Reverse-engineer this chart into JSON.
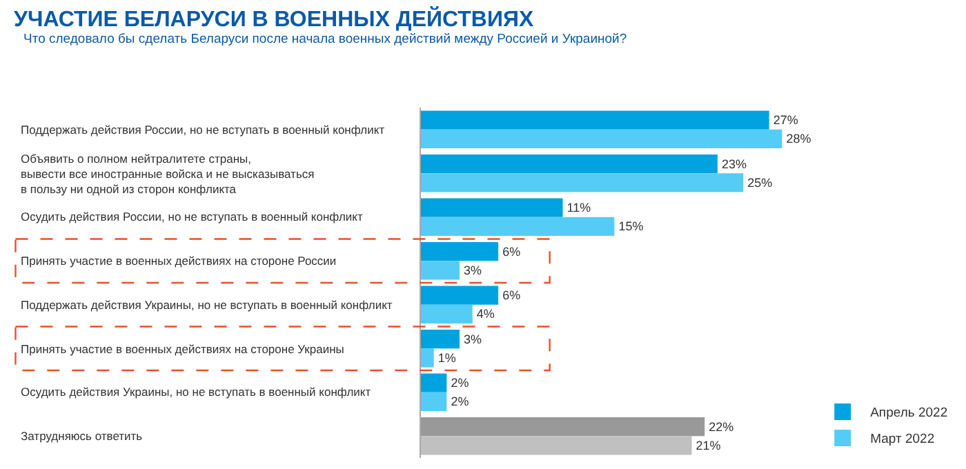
{
  "chart_data": {
    "type": "bar",
    "orientation": "horizontal",
    "title": "УЧАСТИЕ БЕЛАРУСИ В ВОЕННЫХ ДЕЙСТВИЯХ",
    "subtitle": "Что следовало бы сделать Беларуси после начала военных действий между Россией и Украиной?",
    "categories": [
      "Поддержать действия России, но не вступать в военный конфликт",
      "Объявить о полном нейтралитете страны,\nвывести все иностранные войска и не высказываться\nв пользу ни одной из сторон конфликта",
      "Осудить действия России, но не вступать в военный конфликт",
      "Принять участие в военных действиях на стороне России",
      "Поддержать действия Украины, но не вступать в военный конфликт",
      "Принять участие в военных действиях на стороне Украины",
      "Осудить действия Украины, но не вступать в военный конфликт",
      "Затрудняюсь ответить"
    ],
    "series": [
      {
        "name": "Апрель 2022",
        "color": "#00a3e0",
        "colors": [
          "#00a3e0",
          "#00a3e0",
          "#00a3e0",
          "#00a3e0",
          "#00a3e0",
          "#00a3e0",
          "#00a3e0",
          "#999999"
        ],
        "values": [
          27,
          23,
          11,
          6,
          6,
          3,
          2,
          22
        ],
        "value_labels": [
          "27%",
          "23%",
          "11%",
          "6%",
          "6%",
          "3%",
          "2%",
          "22%"
        ]
      },
      {
        "name": "Март 2022",
        "color": "#55ccf5",
        "colors": [
          "#55ccf5",
          "#55ccf5",
          "#55ccf5",
          "#55ccf5",
          "#55ccf5",
          "#55ccf5",
          "#55ccf5",
          "#c0c0c0"
        ],
        "values": [
          28,
          25,
          15,
          3,
          4,
          1,
          2,
          21
        ],
        "value_labels": [
          "28%",
          "25%",
          "15%",
          "3%",
          "4%",
          "1%",
          "2%",
          "21%"
        ]
      }
    ],
    "legend": "bottom right"
  }
}
